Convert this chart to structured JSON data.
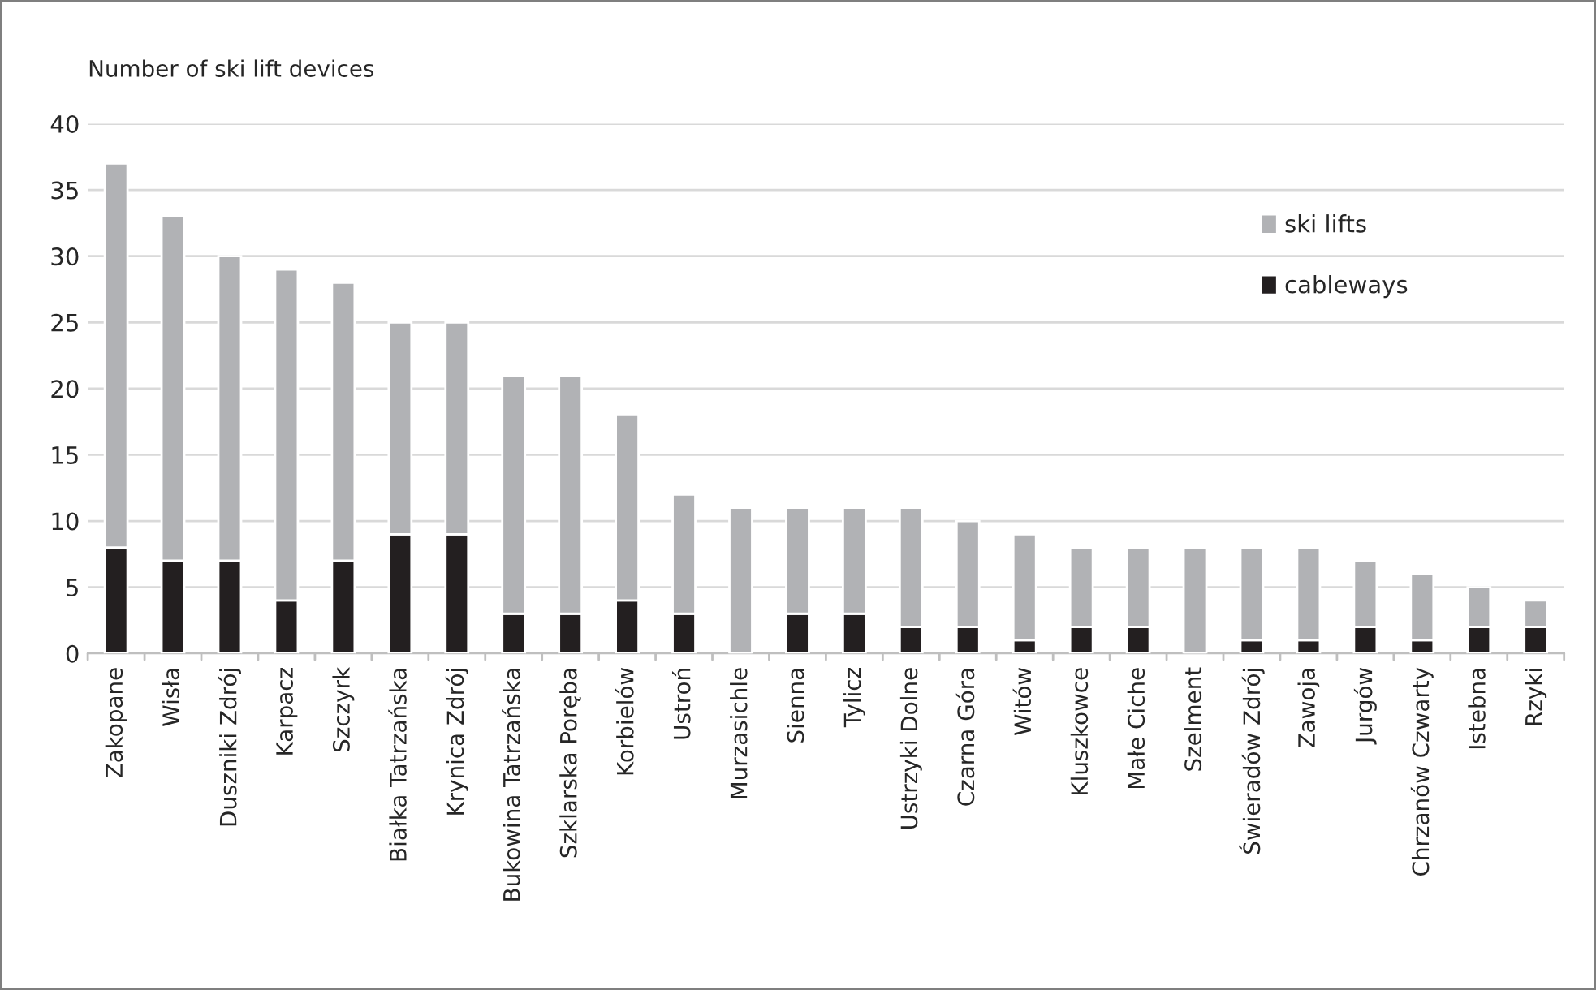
{
  "chart_data": {
    "type": "bar",
    "stacked": true,
    "ylabel": "Number of ski lift devices",
    "categories": [
      "Zakopane",
      "Wisła",
      "Duszniki Zdrój",
      "Karpacz",
      "Szczyrk",
      "Białka Tatrzańska",
      "Krynica Zdrój",
      "Bukowina Tatrzańska",
      "Szklarska Poręba",
      "Korbielów",
      "Ustroń",
      "Murzasichle",
      "Sienna",
      "Tylicz",
      "Ustrzyki Dolne",
      "Czarna Góra",
      "Witów",
      "Kluszkowce",
      "Małe Ciche",
      "Szelment",
      "Świeradów Zdrój",
      "Zawoja",
      "Jurgów",
      "Chrzanów Czwarty",
      "Istebna",
      "Rzyki"
    ],
    "series": [
      {
        "name": "cableways",
        "color": "#231f20",
        "values": [
          8,
          7,
          7,
          4,
          7,
          9,
          9,
          3,
          3,
          4,
          3,
          0,
          3,
          3,
          2,
          2,
          1,
          2,
          2,
          0,
          1,
          1,
          2,
          1,
          2,
          2
        ]
      },
      {
        "name": "ski lifts",
        "color": "#b1b2b5",
        "values": [
          29,
          26,
          23,
          25,
          21,
          16,
          16,
          18,
          18,
          14,
          9,
          11,
          8,
          8,
          9,
          8,
          8,
          6,
          6,
          8,
          7,
          7,
          5,
          5,
          3,
          2
        ]
      }
    ],
    "ylim": [
      0,
      40
    ],
    "yticks": [
      0,
      5,
      10,
      15,
      20,
      25,
      30,
      35,
      40
    ],
    "grid": "y",
    "legend": "right"
  }
}
